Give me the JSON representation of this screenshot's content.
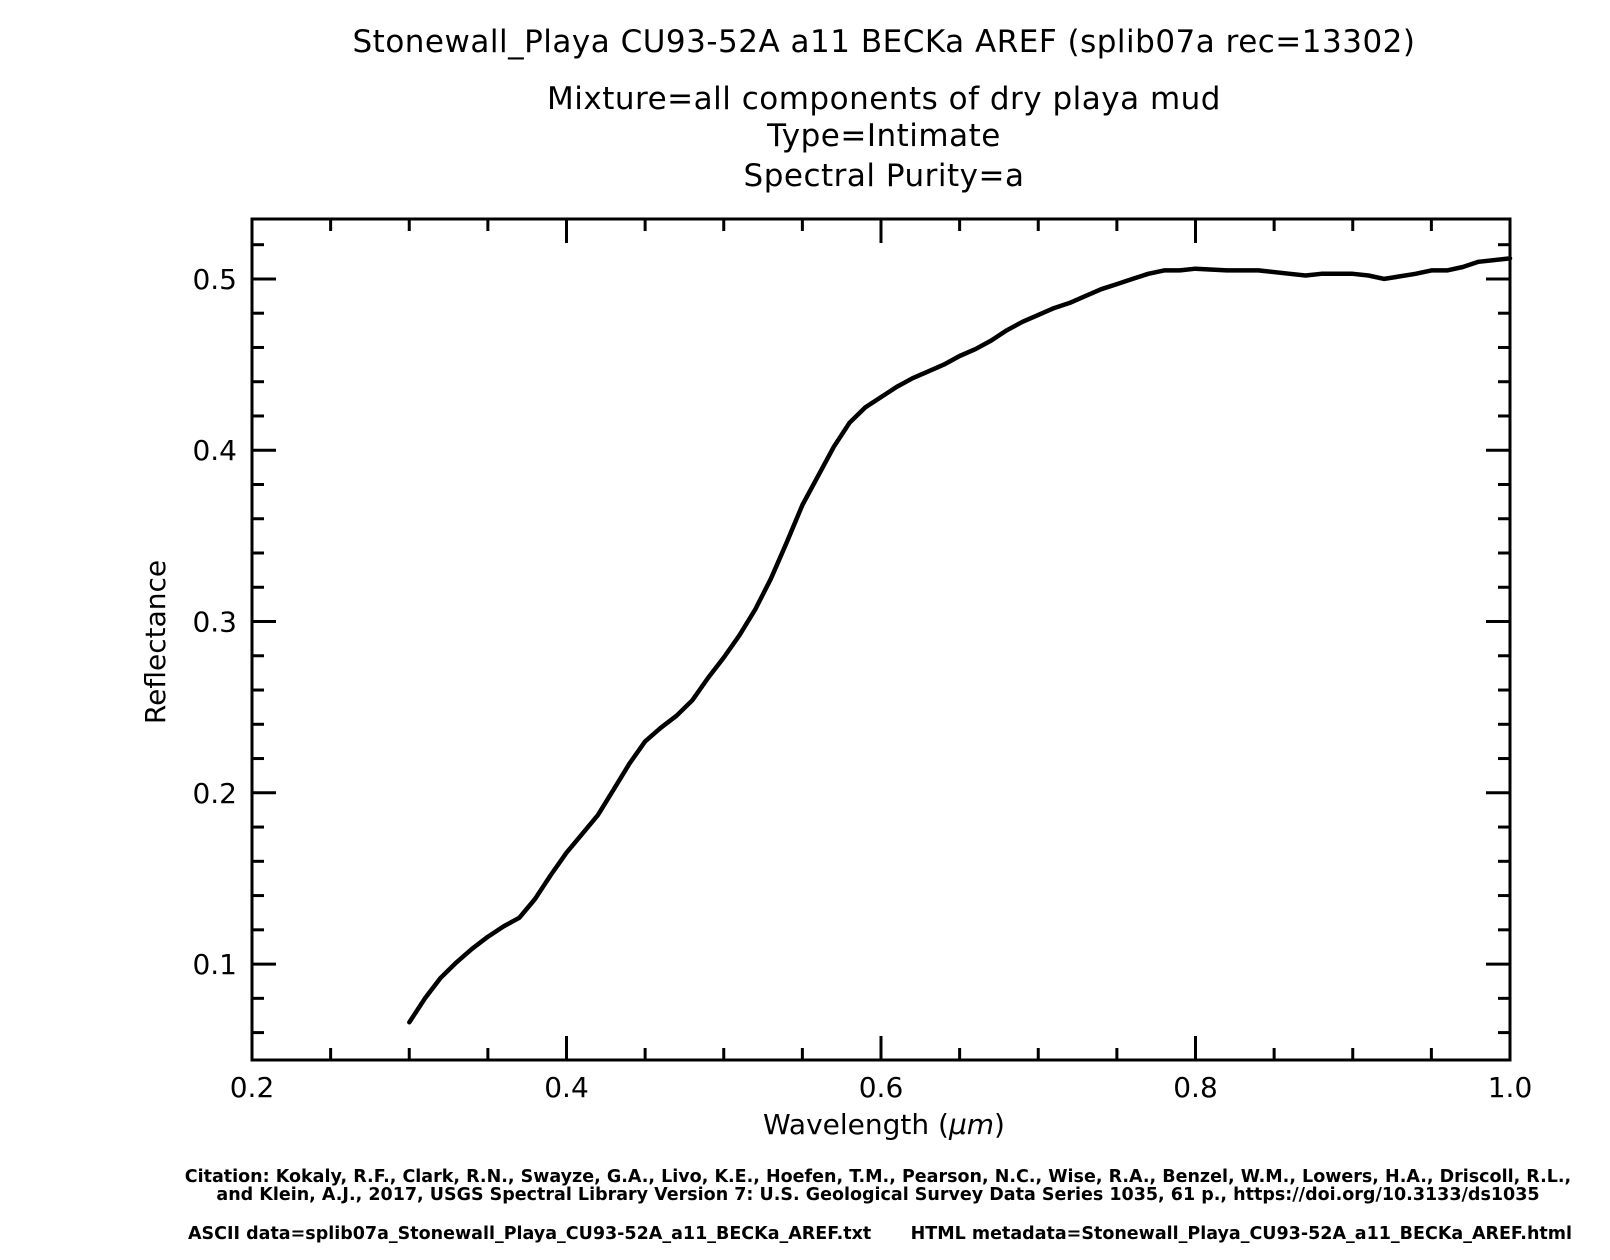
{
  "chart_data": {
    "type": "line",
    "title_lines": [
      "Stonewall_Playa CU93-52A a11  BECKa AREF   (splib07a rec=13302)",
      "Mixture=all components of dry playa mud",
      "Type=Intimate",
      "Spectral Purity=a"
    ],
    "xlabel_prefix": "Wavelength (",
    "xlabel_unit": "μm",
    "xlabel_suffix": ")",
    "ylabel": "Reflectance",
    "xlim": [
      0.2,
      1.0
    ],
    "ylim": [
      0.044,
      0.535
    ],
    "x_ticks": [
      {
        "value": 0.2,
        "label": "0.2"
      },
      {
        "value": 0.4,
        "label": "0.4"
      },
      {
        "value": 0.6,
        "label": "0.6"
      },
      {
        "value": 0.8,
        "label": "0.8"
      },
      {
        "value": 1.0,
        "label": "1.0"
      }
    ],
    "y_ticks": [
      {
        "value": 0.1,
        "label": "0.1"
      },
      {
        "value": 0.2,
        "label": "0.2"
      },
      {
        "value": 0.3,
        "label": "0.3"
      },
      {
        "value": 0.4,
        "label": "0.4"
      },
      {
        "value": 0.5,
        "label": "0.5"
      }
    ],
    "x_minor_step": 0.05,
    "y_minor_step": 0.02,
    "grid": false,
    "line_color": "#000000",
    "series": [
      {
        "x": [
          0.3,
          0.31,
          0.32,
          0.33,
          0.34,
          0.35,
          0.36,
          0.37,
          0.38,
          0.39,
          0.4,
          0.41,
          0.42,
          0.43,
          0.44,
          0.45,
          0.46,
          0.47,
          0.48,
          0.49,
          0.5,
          0.51,
          0.52,
          0.53,
          0.54,
          0.55,
          0.56,
          0.57,
          0.58,
          0.59,
          0.6,
          0.61,
          0.62,
          0.63,
          0.64,
          0.65,
          0.66,
          0.67,
          0.68,
          0.69,
          0.7,
          0.71,
          0.72,
          0.73,
          0.74,
          0.75,
          0.76,
          0.77,
          0.78,
          0.79,
          0.8,
          0.82,
          0.84,
          0.86,
          0.87,
          0.88,
          0.9,
          0.91,
          0.92,
          0.94,
          0.95,
          0.96,
          0.97,
          0.98,
          1.0
        ],
        "y": [
          0.066,
          0.08,
          0.092,
          0.101,
          0.109,
          0.116,
          0.122,
          0.127,
          0.138,
          0.152,
          0.165,
          0.176,
          0.187,
          0.202,
          0.217,
          0.23,
          0.238,
          0.245,
          0.254,
          0.267,
          0.279,
          0.292,
          0.307,
          0.325,
          0.346,
          0.368,
          0.385,
          0.402,
          0.416,
          0.425,
          0.431,
          0.437,
          0.442,
          0.446,
          0.45,
          0.455,
          0.459,
          0.464,
          0.47,
          0.475,
          0.479,
          0.483,
          0.486,
          0.49,
          0.494,
          0.497,
          0.5,
          0.503,
          0.505,
          0.505,
          0.506,
          0.505,
          0.505,
          0.503,
          0.502,
          0.503,
          0.503,
          0.502,
          0.5,
          0.503,
          0.505,
          0.505,
          0.507,
          0.51,
          0.512
        ]
      }
    ]
  },
  "footer": {
    "citation_line1": "Citation: Kokaly, R.F., Clark, R.N., Swayze, G.A., Livo, K.E., Hoefen, T.M., Pearson, N.C., Wise, R.A., Benzel, W.M., Lowers, H.A., Driscoll, R.L.,",
    "citation_line2": "and Klein, A.J., 2017, USGS Spectral Library Version 7: U.S. Geological Survey Data Series 1035, 61 p., https://doi.org/10.3133/ds1035",
    "ascii_data": "ASCII data=splib07a_Stonewall_Playa_CU93-52A_a11_BECKa_AREF.txt",
    "html_metadata": "HTML metadata=Stonewall_Playa_CU93-52A_a11_BECKa_AREF.html"
  }
}
